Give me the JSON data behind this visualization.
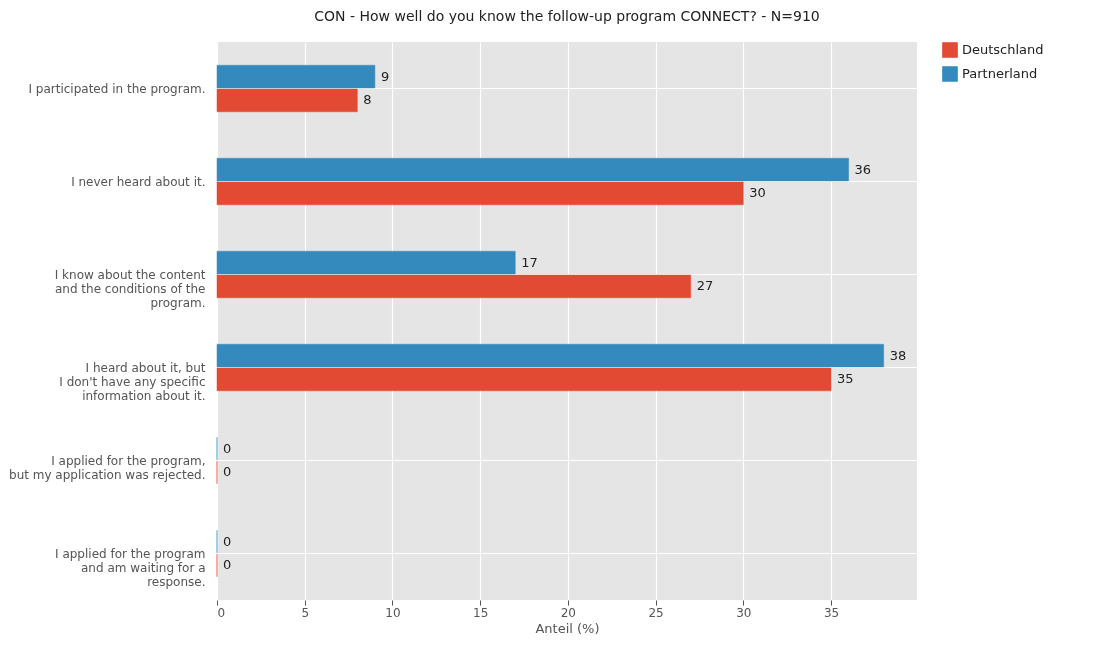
{
  "chart_data": {
    "type": "bar",
    "orientation": "horizontal",
    "title": "CON - How well do you know the follow-up program CONNECT? - N=910",
    "xlabel": "Anteil (%)",
    "categories": [
      "I participated in the program.",
      "I never heard about it.",
      "I know about the content\nand the conditions of the\nprogram.",
      "I heard about it, but\nI don't have any specific\ninformation about it.",
      "I applied for the program,\nbut my application was rejected.",
      "I applied for the program\nand am waiting for a\nresponse."
    ],
    "series": [
      {
        "name": "Deutschland",
        "color": "#e24a33",
        "values": [
          8,
          30,
          27,
          35,
          0,
          0
        ]
      },
      {
        "name": "Partnerland",
        "color": "#348abd",
        "values": [
          9,
          36,
          17,
          38,
          0,
          0
        ]
      }
    ],
    "xlim": [
      0,
      39.9
    ],
    "xticks": [
      0,
      5,
      10,
      15,
      20,
      25,
      30,
      35
    ],
    "grid": true,
    "legend": "top right",
    "data_labels": true
  }
}
